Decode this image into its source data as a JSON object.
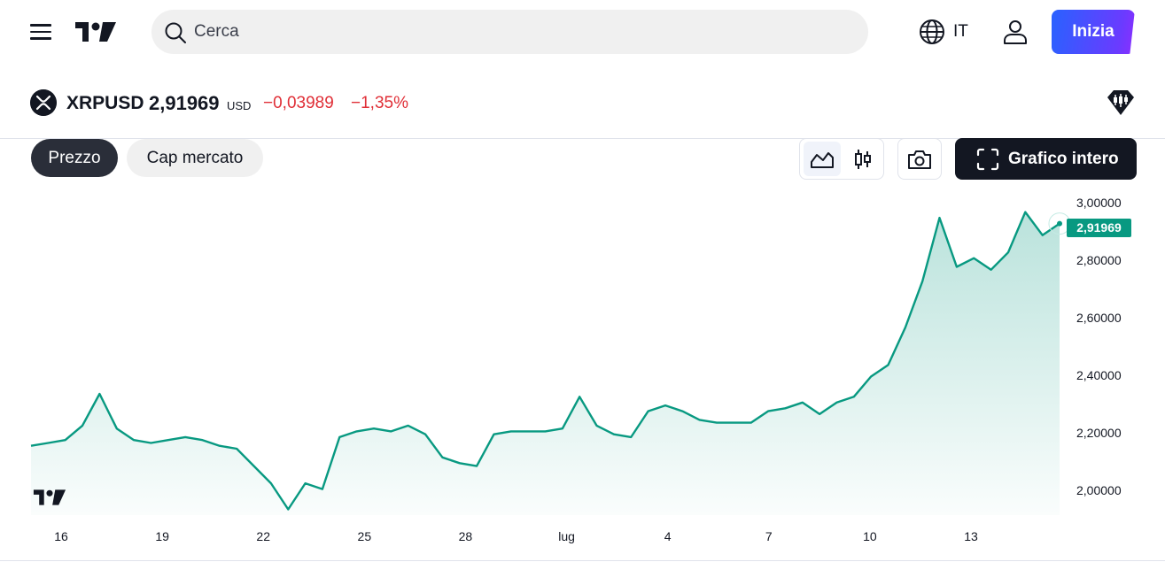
{
  "header": {
    "search_placeholder": "Cerca",
    "language_label": "IT",
    "cta_label": "Inizia"
  },
  "symbol": {
    "name": "XRPUSD",
    "price": "2,91969",
    "currency": "USD",
    "change": "−0,03989",
    "change_pct": "−1,35%"
  },
  "toolbar": {
    "price_tab": "Prezzo",
    "market_cap_tab": "Cap mercato",
    "fullscreen_label": "Grafico intero"
  },
  "colors": {
    "line": "#089981",
    "negative": "#e02f37",
    "cta_gradient": [
      "#2962ff",
      "#8c2eff"
    ]
  },
  "chart_data": {
    "type": "area",
    "last_value_label": "2,91969",
    "yticks": [
      "3,00000",
      "2,80000",
      "2,60000",
      "2,40000",
      "2,20000",
      "2,00000"
    ],
    "xticks": [
      "16",
      "19",
      "22",
      "25",
      "28",
      "lug",
      "4",
      "7",
      "10",
      "13"
    ],
    "ylim": [
      1.91,
      3.02
    ],
    "x": [
      "2025-06-15",
      "2025-06-15T12",
      "2025-06-16",
      "2025-06-16T12",
      "2025-06-17",
      "2025-06-17T12",
      "2025-06-18",
      "2025-06-18T12",
      "2025-06-19",
      "2025-06-19T12",
      "2025-06-20",
      "2025-06-20T12",
      "2025-06-21",
      "2025-06-21T12",
      "2025-06-22",
      "2025-06-22T12",
      "2025-06-23",
      "2025-06-23T12",
      "2025-06-24",
      "2025-06-24T12",
      "2025-06-25",
      "2025-06-25T12",
      "2025-06-26",
      "2025-06-26T12",
      "2025-06-27",
      "2025-06-27T12",
      "2025-06-28",
      "2025-06-28T12",
      "2025-06-29",
      "2025-06-29T12",
      "2025-06-30",
      "2025-06-30T12",
      "2025-07-01",
      "2025-07-01T12",
      "2025-07-02",
      "2025-07-02T12",
      "2025-07-03",
      "2025-07-03T12",
      "2025-07-04",
      "2025-07-04T12",
      "2025-07-05",
      "2025-07-05T12",
      "2025-07-06",
      "2025-07-06T12",
      "2025-07-07",
      "2025-07-07T12",
      "2025-07-08",
      "2025-07-08T12",
      "2025-07-09",
      "2025-07-09T12",
      "2025-07-10",
      "2025-07-10T12",
      "2025-07-11",
      "2025-07-11T12",
      "2025-07-12",
      "2025-07-12T12",
      "2025-07-13",
      "2025-07-13T12",
      "2025-07-14",
      "2025-07-14T12",
      "2025-07-15"
    ],
    "values": [
      2.15,
      2.16,
      2.17,
      2.22,
      2.33,
      2.21,
      2.17,
      2.16,
      2.17,
      2.18,
      2.17,
      2.15,
      2.14,
      2.08,
      2.02,
      1.93,
      2.02,
      2.0,
      2.18,
      2.2,
      2.21,
      2.2,
      2.22,
      2.19,
      2.11,
      2.09,
      2.08,
      2.19,
      2.2,
      2.2,
      2.2,
      2.21,
      2.32,
      2.22,
      2.19,
      2.18,
      2.27,
      2.29,
      2.27,
      2.24,
      2.23,
      2.23,
      2.23,
      2.27,
      2.28,
      2.3,
      2.26,
      2.3,
      2.32,
      2.39,
      2.43,
      2.56,
      2.72,
      2.94,
      2.77,
      2.8,
      2.76,
      2.82,
      2.96,
      2.88,
      2.92
    ]
  }
}
